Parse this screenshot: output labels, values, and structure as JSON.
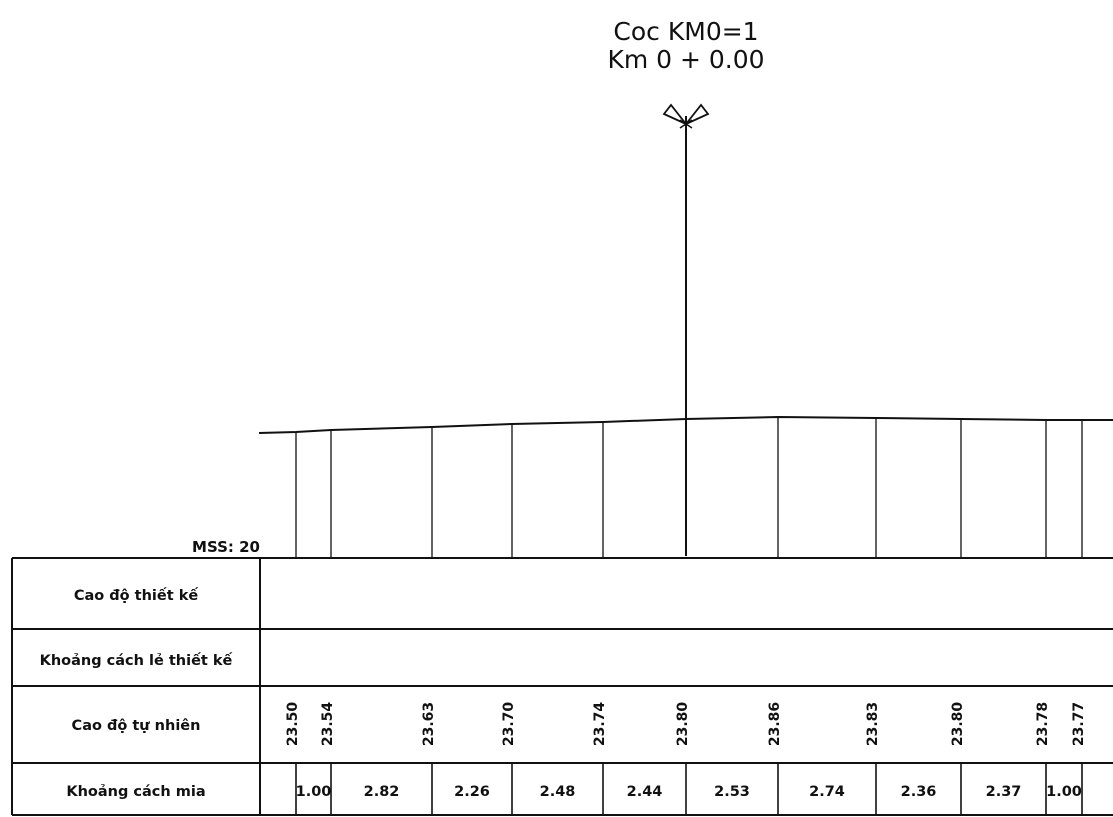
{
  "header": {
    "station_name": "Coc KM0=1",
    "station_chainage": "Km 0 + 0.00"
  },
  "scale_label": "MSS: 20",
  "table": {
    "row_labels": [
      "Cao độ thiết kế",
      "Khoảng cách lẻ thiết kế",
      "Cao độ tự nhiên",
      "Khoảng cách mia"
    ]
  },
  "profile": {
    "natural_elevations": [
      "23.50",
      "23.54",
      "23.63",
      "23.70",
      "23.74",
      "23.80",
      "23.86",
      "23.83",
      "23.80",
      "23.78",
      "23.77"
    ],
    "staff_distances": [
      "1.00",
      "2.82",
      "2.26",
      "2.48",
      "2.44",
      "2.53",
      "2.74",
      "2.36",
      "2.37",
      "1.00"
    ]
  }
}
